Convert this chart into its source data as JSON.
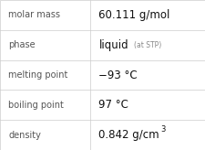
{
  "rows": [
    {
      "label": "molar mass",
      "value": "60.111 g/mol",
      "value_sup": null,
      "value_note": null
    },
    {
      "label": "phase",
      "value": "liquid",
      "value_note": "(at STP)",
      "value_sup": null
    },
    {
      "label": "melting point",
      "value": "−93 °C",
      "value_sup": null,
      "value_note": null
    },
    {
      "label": "boiling point",
      "value": "97 °C",
      "value_sup": null,
      "value_note": null
    },
    {
      "label": "density",
      "value": "0.842 g/cm",
      "value_sup": "3",
      "value_note": null
    }
  ],
  "background_color": "#ffffff",
  "border_color": "#cccccc",
  "label_color": "#555555",
  "value_color": "#111111",
  "note_color": "#888888",
  "label_fontsize": 7.0,
  "value_fontsize": 8.5,
  "note_fontsize": 5.5,
  "sup_fontsize": 6.0,
  "col_split": 0.44,
  "fig_width": 2.26,
  "fig_height": 1.64,
  "dpi": 100
}
